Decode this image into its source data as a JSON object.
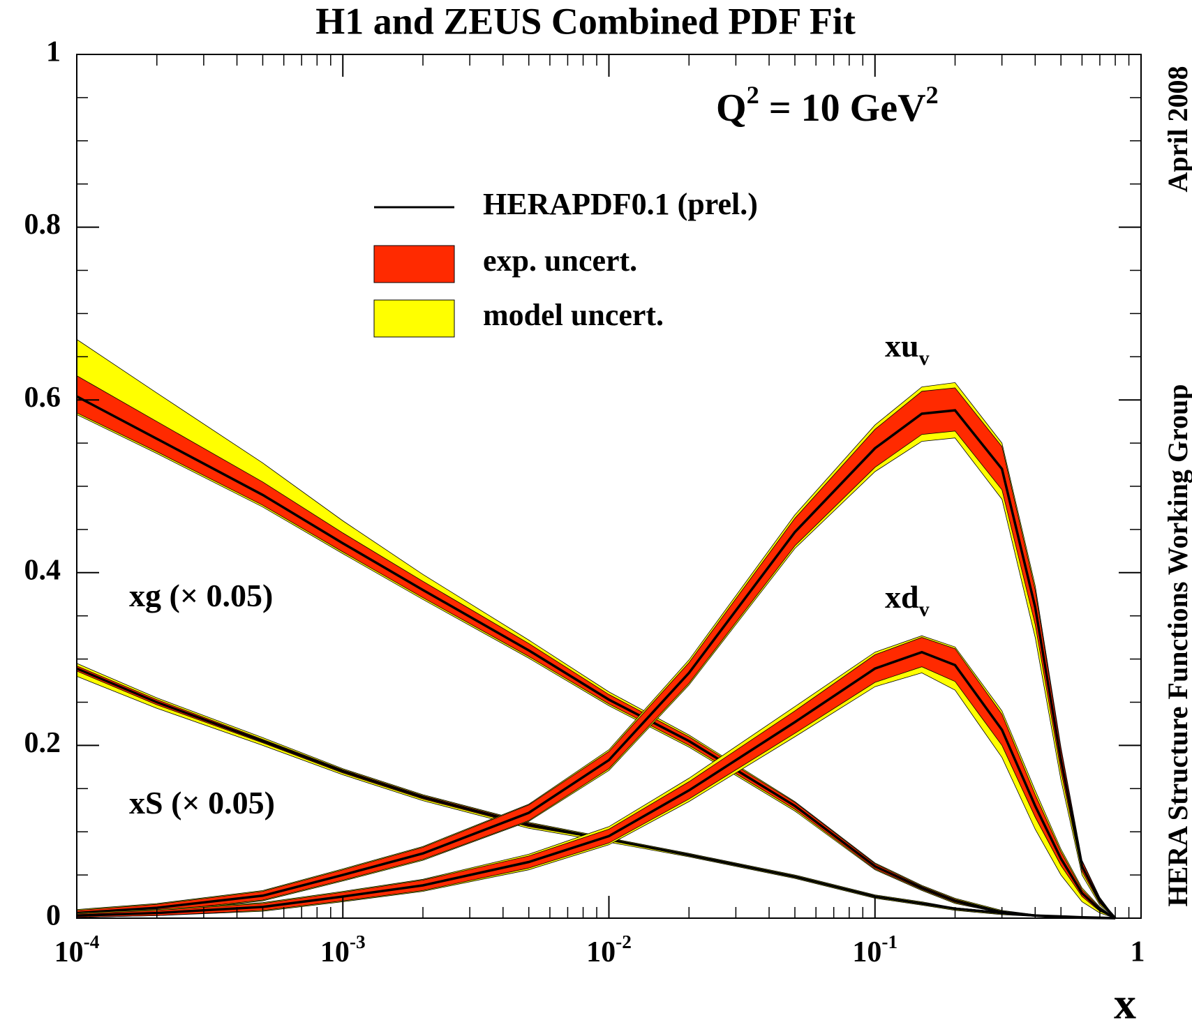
{
  "chart_data": {
    "type": "line",
    "title": "H1 and ZEUS Combined PDF Fit",
    "annotation": [
      {
        "text": "Q"
      },
      {
        "text": "2",
        "sup": true
      },
      {
        "text": " = 10 GeV"
      },
      {
        "text": "2",
        "sup": true
      }
    ],
    "side_labels": [
      "April 2008",
      "HERA Structure Functions Working Group"
    ],
    "xlabel": "x",
    "xscale": "log",
    "xlim": [
      0.0001,
      1
    ],
    "xticks": [
      {
        "value": 0.0001,
        "label": "10",
        "exponent": "-4"
      },
      {
        "value": 0.001,
        "label": "10",
        "exponent": "-3"
      },
      {
        "value": 0.01,
        "label": "10",
        "exponent": "-2"
      },
      {
        "value": 0.1,
        "label": "10",
        "exponent": "-1"
      },
      1
    ],
    "xminorticks": [
      0.0002,
      0.0003,
      0.0004,
      0.0005,
      0.0006,
      0.0007,
      0.0008,
      0.0009,
      0.002,
      0.003,
      0.004,
      0.005,
      0.006,
      0.007,
      0.008,
      0.009,
      0.02,
      0.03,
      0.04,
      0.05,
      0.06,
      0.07,
      0.08,
      0.09,
      0.2,
      0.3,
      0.4,
      0.5,
      0.6,
      0.7,
      0.8,
      0.9
    ],
    "ylim": [
      0,
      1
    ],
    "yticks": [
      0,
      0.2,
      0.4,
      0.6,
      0.8,
      1
    ],
    "yminorticks": [
      0.05,
      0.1,
      0.15,
      0.25,
      0.3,
      0.35,
      0.45,
      0.5,
      0.55,
      0.65,
      0.7,
      0.75,
      0.85,
      0.9,
      0.95
    ],
    "line_color": "#000000",
    "exp_color": "#ff2a00",
    "model_color": "#ffff00",
    "legend": [
      "HERAPDF0.1 (prel.)",
      "exp. uncert.",
      "model uncert."
    ],
    "x": [
      0.0001,
      0.0002,
      0.0005,
      0.001,
      0.002,
      0.005,
      0.01,
      0.02,
      0.05,
      0.1,
      0.15,
      0.2,
      0.3,
      0.4,
      0.5,
      0.6,
      0.7,
      0.8
    ],
    "series": [
      {
        "label": [
          {
            "text": "xg (× 0.05)"
          }
        ],
        "values": [
          0.604,
          0.555,
          0.49,
          0.434,
          0.38,
          0.31,
          0.253,
          0.205,
          0.13,
          0.06,
          0.035,
          0.02,
          0.007,
          0.003,
          0.001,
          0.0005,
          0.0002,
          0
        ],
        "exp_high": [
          0.628,
          0.575,
          0.505,
          0.446,
          0.39,
          0.318,
          0.259,
          0.21,
          0.134,
          0.063,
          0.037,
          0.022,
          0.008,
          0.004,
          0.0015,
          0.0008,
          0.0003,
          0
        ],
        "exp_low": [
          0.585,
          0.54,
          0.478,
          0.424,
          0.371,
          0.303,
          0.248,
          0.2,
          0.126,
          0.057,
          0.033,
          0.018,
          0.006,
          0.002,
          0.0008,
          0.0003,
          0.0001,
          0
        ],
        "model_high": [
          0.67,
          0.608,
          0.527,
          0.46,
          0.398,
          0.322,
          0.262,
          0.212,
          0.135,
          0.064,
          0.038,
          0.023,
          0.009,
          0.004,
          0.0015,
          0.0008,
          0.0003,
          0
        ],
        "model_low": [
          0.583,
          0.538,
          0.476,
          0.422,
          0.369,
          0.301,
          0.246,
          0.198,
          0.124,
          0.056,
          0.032,
          0.017,
          0.006,
          0.002,
          0.0008,
          0.0003,
          0.0001,
          0
        ]
      },
      {
        "label": [
          {
            "text": "xS (× 0.05)"
          }
        ],
        "values": [
          0.289,
          0.25,
          0.205,
          0.17,
          0.14,
          0.108,
          0.091,
          0.073,
          0.048,
          0.025,
          0.017,
          0.011,
          0.006,
          0.003,
          0.002,
          0.001,
          0.0005,
          0
        ],
        "exp_high": [
          0.292,
          0.253,
          0.207,
          0.172,
          0.142,
          0.11,
          0.092,
          0.074,
          0.049,
          0.026,
          0.018,
          0.012,
          0.007,
          0.0035,
          0.0022,
          0.0012,
          0.0006,
          0
        ],
        "exp_low": [
          0.286,
          0.247,
          0.203,
          0.168,
          0.138,
          0.106,
          0.09,
          0.072,
          0.047,
          0.024,
          0.016,
          0.01,
          0.005,
          0.0025,
          0.0018,
          0.0008,
          0.0004,
          0
        ],
        "model_high": [
          0.295,
          0.255,
          0.209,
          0.173,
          0.143,
          0.111,
          0.093,
          0.075,
          0.05,
          0.027,
          0.019,
          0.012,
          0.007,
          0.0035,
          0.0022,
          0.0012,
          0.0006,
          0
        ],
        "model_low": [
          0.28,
          0.243,
          0.2,
          0.166,
          0.136,
          0.104,
          0.088,
          0.071,
          0.046,
          0.023,
          0.015,
          0.009,
          0.004,
          0.002,
          0.0015,
          0.0006,
          0.0003,
          0
        ]
      },
      {
        "label": [
          {
            "text": "xu"
          },
          {
            "text": "v",
            "sub": true
          }
        ],
        "values": [
          0.006,
          0.012,
          0.026,
          0.05,
          0.075,
          0.122,
          0.183,
          0.284,
          0.447,
          0.544,
          0.584,
          0.588,
          0.52,
          0.36,
          0.183,
          0.06,
          0.02,
          0
        ],
        "exp_high": [
          0.009,
          0.016,
          0.031,
          0.056,
          0.082,
          0.131,
          0.193,
          0.296,
          0.463,
          0.566,
          0.61,
          0.614,
          0.546,
          0.38,
          0.196,
          0.066,
          0.023,
          0
        ],
        "exp_low": [
          0.003,
          0.008,
          0.021,
          0.044,
          0.068,
          0.113,
          0.173,
          0.272,
          0.431,
          0.522,
          0.56,
          0.564,
          0.496,
          0.34,
          0.17,
          0.054,
          0.017,
          0
        ],
        "model_high": [
          0.01,
          0.017,
          0.032,
          0.057,
          0.083,
          0.132,
          0.195,
          0.299,
          0.467,
          0.571,
          0.615,
          0.62,
          0.55,
          0.385,
          0.198,
          0.067,
          0.024,
          0
        ],
        "model_low": [
          0.002,
          0.007,
          0.02,
          0.043,
          0.067,
          0.112,
          0.171,
          0.27,
          0.428,
          0.517,
          0.552,
          0.556,
          0.485,
          0.325,
          0.16,
          0.05,
          0.015,
          0
        ]
      },
      {
        "label": [
          {
            "text": "xd"
          },
          {
            "text": "v",
            "sub": true
          }
        ],
        "values": [
          0.003,
          0.006,
          0.013,
          0.025,
          0.038,
          0.065,
          0.095,
          0.148,
          0.227,
          0.289,
          0.308,
          0.293,
          0.218,
          0.13,
          0.069,
          0.029,
          0.01,
          0
        ],
        "exp_high": [
          0.005,
          0.009,
          0.017,
          0.03,
          0.044,
          0.072,
          0.103,
          0.158,
          0.24,
          0.305,
          0.325,
          0.312,
          0.236,
          0.143,
          0.077,
          0.033,
          0.012,
          0
        ],
        "exp_low": [
          0.001,
          0.003,
          0.009,
          0.02,
          0.032,
          0.058,
          0.087,
          0.138,
          0.214,
          0.273,
          0.291,
          0.274,
          0.2,
          0.117,
          0.061,
          0.025,
          0.008,
          0
        ],
        "model_high": [
          0.006,
          0.01,
          0.018,
          0.031,
          0.045,
          0.074,
          0.106,
          0.162,
          0.245,
          0.308,
          0.327,
          0.314,
          0.24,
          0.148,
          0.08,
          0.035,
          0.013,
          0
        ],
        "model_low": [
          0.001,
          0.003,
          0.008,
          0.019,
          0.031,
          0.056,
          0.085,
          0.135,
          0.21,
          0.268,
          0.284,
          0.264,
          0.186,
          0.103,
          0.05,
          0.019,
          0.006,
          0
        ]
      }
    ]
  }
}
